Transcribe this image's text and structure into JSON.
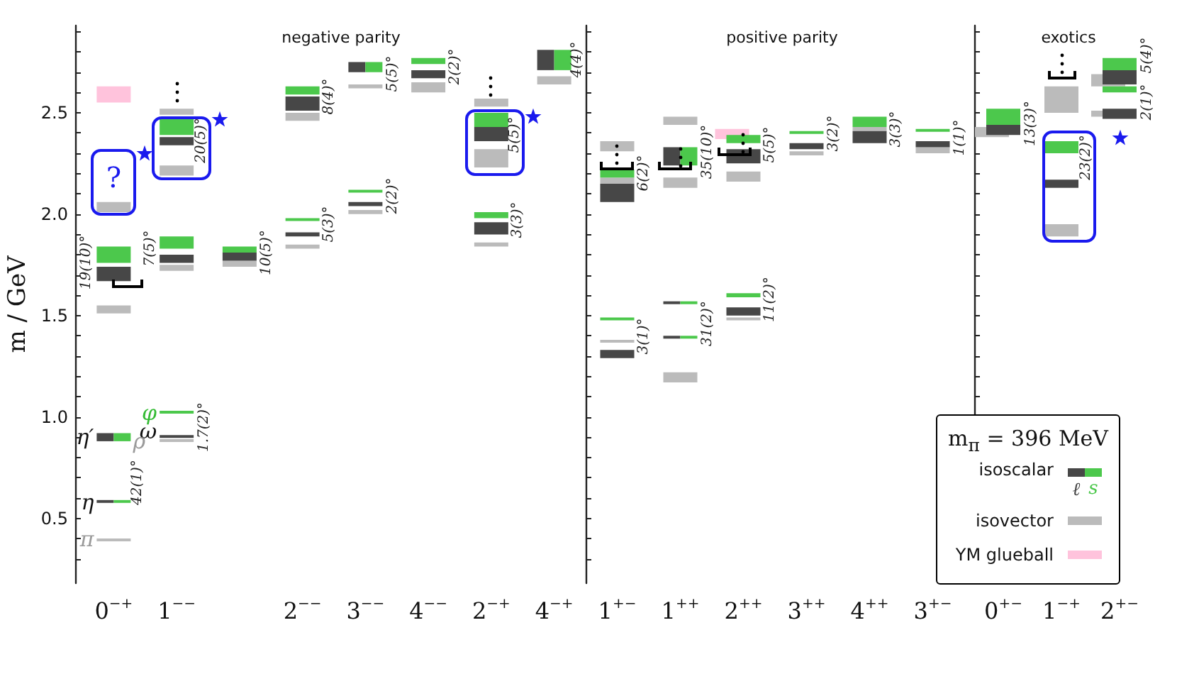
{
  "chart_data": [
    {
      "type": "bar",
      "title": "negative parity",
      "ylabel": "m / GeV",
      "legend": "bottom right",
      "legend_title": "m$_{π}$ = 396 MeV",
      "categories": [
        "0$^{−+}$",
        "1$^{−−}$",
        null,
        "2$^{−−}$",
        "3$^{−−}$",
        "4$^{−−}$",
        "2$^{−+}$",
        "4$^{−+}$"
      ],
      "ylim": [
        0.18,
        2.93
      ],
      "yticks": [
        {
          "value": 0.3,
          "label": null
        },
        {
          "value": 0.4,
          "label": null
        },
        0.5,
        {
          "value": 0.6,
          "label": null
        },
        {
          "value": 0.7,
          "label": null
        },
        {
          "value": 0.8,
          "label": null
        },
        {
          "value": 0.9,
          "label": null
        },
        {
          "value": 1,
          "label": "1.0"
        },
        {
          "value": 1.1,
          "label": null
        },
        {
          "value": 1.2,
          "label": null
        },
        {
          "value": 1.3,
          "label": null
        },
        {
          "value": 1.4,
          "label": null
        },
        1.5,
        {
          "value": 1.6,
          "label": null
        },
        {
          "value": 1.7,
          "label": null
        },
        {
          "value": 1.8,
          "label": null
        },
        {
          "value": 1.9,
          "label": null
        },
        {
          "value": 2,
          "label": "2.0"
        },
        {
          "value": 2.1,
          "label": null
        },
        {
          "value": 2.2,
          "label": null
        },
        {
          "value": 2.3,
          "label": null
        },
        {
          "value": 2.4,
          "label": null
        },
        2.5,
        {
          "value": 2.6,
          "label": null
        },
        {
          "value": 2.7,
          "label": null
        },
        {
          "value": 2.8,
          "label": null
        },
        {
          "value": 2.9,
          "label": null
        }
      ],
      "series": [
        {
          "name": "isovector",
          "color": "#bbbbbb",
          "base": [
            2.01,
            2.49,
            1.74,
            2.46,
            2.62,
            2.6,
            2.53,
            2.64
          ],
          "values": [
            0.05,
            0.03,
            0.03,
            0.04,
            0.02,
            0.05,
            0.04,
            0.04
          ]
        },
        {
          "color": "#bbbbbb",
          "base": [
            1.51,
            2.19,
            null,
            1.83,
            2.0,
            null,
            2.23,
            null
          ],
          "values": [
            0.04,
            0.05,
            null,
            0.02,
            0.02,
            null,
            0.09,
            null
          ]
        },
        {
          "color": "#bbbbbb",
          "base": [
            0.39,
            1.72,
            null,
            null,
            null,
            null,
            1.84,
            null
          ],
          "values": [
            0.01,
            0.03,
            null,
            null,
            null,
            null,
            0.02,
            null
          ]
        },
        {
          "color": "#bbbbbb",
          "base": [
            null,
            0.88,
            null,
            null,
            null,
            null,
            null,
            null
          ],
          "values": [
            null,
            0.01,
            null,
            null,
            null,
            null,
            null,
            null
          ]
        },
        {
          "name": "YM glueball",
          "color": "#ffc3dc",
          "base": [
            2.55,
            null,
            null,
            null,
            null,
            null,
            null,
            null
          ],
          "values": [
            0.08,
            null,
            null,
            null,
            null,
            null,
            null,
            null
          ]
        },
        {
          "name": "ℓ",
          "color": "#474747",
          "base": [
            0.88,
            null,
            null,
            null,
            2.7,
            null,
            null,
            2.71
          ],
          "values": [
            0.04,
            null,
            null,
            null,
            0.05,
            null,
            null,
            0.1
          ]
        },
        {
          "color": "#474747",
          "base": [
            0.58,
            null,
            null,
            null,
            null,
            null,
            null,
            null
          ],
          "values": [
            0.01,
            null,
            null,
            null,
            null,
            null,
            null,
            null
          ]
        },
        {
          "color": "#474747",
          "base": [
            1.67,
            2.34,
            1.77,
            2.51,
            null,
            2.67,
            2.36,
            null
          ],
          "values": [
            0.07,
            0.04,
            0.04,
            0.07,
            null,
            0.04,
            0.07,
            null
          ]
        },
        {
          "color": "#474747",
          "base": [
            null,
            1.76,
            null,
            1.89,
            2.04,
            null,
            1.9,
            null
          ],
          "values": [
            null,
            0.04,
            null,
            0.02,
            0.02,
            null,
            0.06,
            null
          ]
        },
        {
          "color": "#474747",
          "base": [
            null,
            0.9,
            null,
            null,
            null,
            null,
            null,
            null
          ],
          "values": [
            null,
            0.01,
            null,
            null,
            null,
            null,
            null,
            null
          ]
        },
        {
          "name": "s",
          "color": "#4cc84c",
          "base": [
            1.76,
            2.39,
            1.81,
            2.59,
            null,
            2.74,
            2.43,
            null
          ],
          "values": [
            0.08,
            0.08,
            0.03,
            0.04,
            null,
            0.03,
            0.07,
            null
          ]
        },
        {
          "color": "#4cc84c",
          "base": [
            null,
            1.83,
            null,
            1.97,
            2.11,
            null,
            1.98,
            null
          ],
          "values": [
            null,
            0.06,
            null,
            0.01,
            0.01,
            null,
            0.03,
            null
          ]
        },
        {
          "color": "#4cc84c",
          "base": [
            null,
            1.02,
            null,
            null,
            null,
            null,
            null,
            null
          ],
          "values": [
            null,
            0.01,
            null,
            null,
            null,
            null,
            null,
            null
          ]
        },
        {
          "color": "#4cc84c",
          "base": [
            0.88,
            null,
            null,
            null,
            2.7,
            null,
            null,
            2.71
          ],
          "values": [
            0.04,
            null,
            null,
            null,
            0.05,
            null,
            null,
            0.1
          ]
        },
        {
          "color": "#4cc84c",
          "base": [
            0.58,
            null,
            null,
            null,
            null,
            null,
            null,
            null
          ],
          "values": [
            0.01,
            null,
            null,
            null,
            null,
            null,
            null,
            null
          ]
        }
      ],
      "annotations": [
        "π",
        "η",
        "η′",
        "42(1)°",
        "19(10)°",
        "?",
        "7(5)°",
        "20(5)°",
        "10(5)°",
        "φ",
        "ω",
        "ρ",
        "1.7(2)°",
        "8(4)°",
        "5(3)°",
        "5(5)°",
        "2(2)°",
        "2(2)°",
        "5(5)°",
        "3(3)°",
        "4(4)°",
        "isoscalar"
      ]
    },
    {
      "type": "bar",
      "title": "positive parity",
      "tick_labels": "x",
      "categories": [
        "1$^{+−}$",
        "1$^{++}$",
        "2$^{++}$",
        "3$^{++}$",
        "4$^{++}$",
        "3$^{+−}$"
      ],
      "ylim": [
        0.18,
        2.93
      ],
      "yticks": [
        {
          "value": 0.3,
          "label": null
        },
        {
          "value": 0.4,
          "label": null
        },
        {
          "value": 0.5,
          "label": null
        },
        {
          "value": 0.6,
          "label": null
        },
        {
          "value": 0.7,
          "label": null
        },
        {
          "value": 0.8,
          "label": null
        },
        {
          "value": 0.9,
          "label": null
        },
        {
          "value": 1,
          "label": null
        },
        {
          "value": 1.1,
          "label": null
        },
        {
          "value": 1.2,
          "label": null
        },
        {
          "value": 1.3,
          "label": null
        },
        {
          "value": 1.4,
          "label": null
        },
        {
          "value": 1.5,
          "label": null
        },
        {
          "value": 1.6,
          "label": null
        },
        {
          "value": 1.7,
          "label": null
        },
        {
          "value": 1.8,
          "label": null
        },
        {
          "value": 1.9,
          "label": null
        },
        {
          "value": 2,
          "label": null
        },
        {
          "value": 2.1,
          "label": null
        },
        {
          "value": 2.2,
          "label": null
        },
        {
          "value": 2.3,
          "label": null
        },
        {
          "value": 2.4,
          "label": null
        },
        {
          "value": 2.5,
          "label": null
        },
        {
          "value": 2.6,
          "label": null
        },
        {
          "value": 2.7,
          "label": null
        },
        {
          "value": 2.8,
          "label": null
        },
        {
          "value": 2.9,
          "label": null
        }
      ],
      "series": [
        {
          "color": "#bbbbbb",
          "base": [
            2.31,
            2.44,
            2.16,
            2.29,
            2.41,
            2.3
          ],
          "values": [
            0.05,
            0.04,
            0.05,
            0.02,
            0.02,
            0.03
          ]
        },
        {
          "color": "#bbbbbb",
          "base": [
            2.15,
            2.13,
            1.48,
            null,
            null,
            null
          ],
          "values": [
            0.03,
            0.05,
            0.01,
            null,
            null,
            null
          ]
        },
        {
          "color": "#bbbbbb",
          "base": [
            1.37,
            1.17,
            null,
            null,
            null,
            null
          ],
          "values": [
            0.01,
            0.05,
            null,
            null,
            null,
            null
          ]
        },
        {
          "color": "#ffc3dc",
          "base": [
            null,
            null,
            2.37,
            null,
            null,
            null
          ],
          "values": [
            null,
            null,
            0.05,
            null,
            null,
            null
          ]
        },
        {
          "color": "#474747",
          "base": [
            null,
            2.24,
            null,
            null,
            null,
            null
          ],
          "values": [
            null,
            0.09,
            null,
            null,
            null,
            null
          ]
        },
        {
          "color": "#474747",
          "base": [
            null,
            1.56,
            null,
            null,
            null,
            null
          ],
          "values": [
            null,
            0.01,
            null,
            null,
            null,
            null
          ]
        },
        {
          "color": "#474747",
          "base": [
            null,
            1.39,
            null,
            null,
            null,
            null
          ],
          "values": [
            null,
            0.01,
            null,
            null,
            null,
            null
          ]
        },
        {
          "color": "#474747",
          "base": [
            2.06,
            null,
            2.25,
            2.32,
            2.35,
            2.33
          ],
          "values": [
            0.09,
            null,
            0.07,
            0.03,
            0.06,
            0.03
          ]
        },
        {
          "color": "#474747",
          "base": [
            1.29,
            null,
            1.5,
            null,
            null,
            null
          ],
          "values": [
            0.04,
            null,
            0.04,
            null,
            null,
            null
          ]
        },
        {
          "color": "#4cc84c",
          "base": [
            2.18,
            null,
            2.35,
            2.4,
            2.43,
            2.41
          ],
          "values": [
            0.04,
            null,
            0.04,
            0.01,
            0.05,
            0.01
          ]
        },
        {
          "color": "#4cc84c",
          "base": [
            1.48,
            null,
            1.59,
            null,
            null,
            null
          ],
          "values": [
            0.01,
            null,
            0.02,
            null,
            null,
            null
          ]
        },
        {
          "color": "#4cc84c",
          "base": [
            null,
            2.24,
            null,
            null,
            null,
            null
          ],
          "values": [
            null,
            0.09,
            null,
            null,
            null,
            null
          ]
        },
        {
          "color": "#4cc84c",
          "base": [
            null,
            1.56,
            null,
            null,
            null,
            null
          ],
          "values": [
            null,
            0.01,
            null,
            null,
            null,
            null
          ]
        },
        {
          "color": "#4cc84c",
          "base": [
            null,
            1.39,
            null,
            null,
            null,
            null
          ],
          "values": [
            null,
            0.01,
            null,
            null,
            null,
            null
          ]
        }
      ],
      "annotations": [
        "6(2)°",
        "3(1)°",
        "35(10)°",
        "31(2)°",
        "5(5)°",
        "11(2)°",
        "3(2)°",
        "3(3)°",
        "1(1)°"
      ]
    },
    {
      "type": "bar",
      "title": "exotics",
      "tick_labels": "x",
      "categories": [
        "0$^{+−}$",
        "1$^{−+}$",
        "2$^{+−}$"
      ],
      "ylim": [
        0.18,
        2.93
      ],
      "yticks": [
        {
          "value": 0.3,
          "label": null
        },
        {
          "value": 0.4,
          "label": null
        },
        {
          "value": 0.5,
          "label": null
        },
        {
          "value": 0.6,
          "label": null
        },
        {
          "value": 0.7,
          "label": null
        },
        {
          "value": 0.8,
          "label": null
        },
        {
          "value": 0.9,
          "label": null
        },
        {
          "value": 1,
          "label": null
        },
        {
          "value": 1.1,
          "label": null
        },
        {
          "value": 1.2,
          "label": null
        },
        {
          "value": 1.3,
          "label": null
        },
        {
          "value": 1.4,
          "label": null
        },
        {
          "value": 1.5,
          "label": null
        },
        {
          "value": 1.6,
          "label": null
        },
        {
          "value": 1.7,
          "label": null
        },
        {
          "value": 1.8,
          "label": null
        },
        {
          "value": 1.9,
          "label": null
        },
        {
          "value": 2,
          "label": null
        },
        {
          "value": 2.1,
          "label": null
        },
        {
          "value": 2.2,
          "label": null
        },
        {
          "value": 2.3,
          "label": null
        },
        {
          "value": 2.4,
          "label": null
        },
        {
          "value": 2.5,
          "label": null
        },
        {
          "value": 2.6,
          "label": null
        },
        {
          "value": 2.7,
          "label": null
        },
        {
          "value": 2.8,
          "label": null
        },
        {
          "value": 2.9,
          "label": null
        }
      ],
      "series": [
        {
          "color": "#bbbbbb",
          "base": [
            2.38,
            2.5,
            2.63
          ],
          "values": [
            0.05,
            0.13,
            0.06
          ]
        },
        {
          "color": "#bbbbbb",
          "base": [
            null,
            1.89,
            2.48
          ],
          "values": [
            null,
            0.06,
            0.03
          ]
        },
        {
          "color": "#474747",
          "base": [
            2.39,
            2.13,
            2.64
          ],
          "values": [
            0.05,
            0.04,
            0.07
          ]
        },
        {
          "color": "#474747",
          "base": [
            null,
            null,
            2.47
          ],
          "values": [
            null,
            null,
            0.05
          ]
        },
        {
          "color": "#4cc84c",
          "base": [
            2.44,
            2.3,
            2.71
          ],
          "values": [
            0.08,
            0.06,
            0.06
          ]
        },
        {
          "color": "#4cc84c",
          "base": [
            null,
            null,
            2.6
          ],
          "values": [
            null,
            null,
            0.03
          ]
        }
      ],
      "annotations": [
        "13(3)°",
        "23(2)°",
        "5(4)°",
        "2(1)°"
      ]
    }
  ]
}
